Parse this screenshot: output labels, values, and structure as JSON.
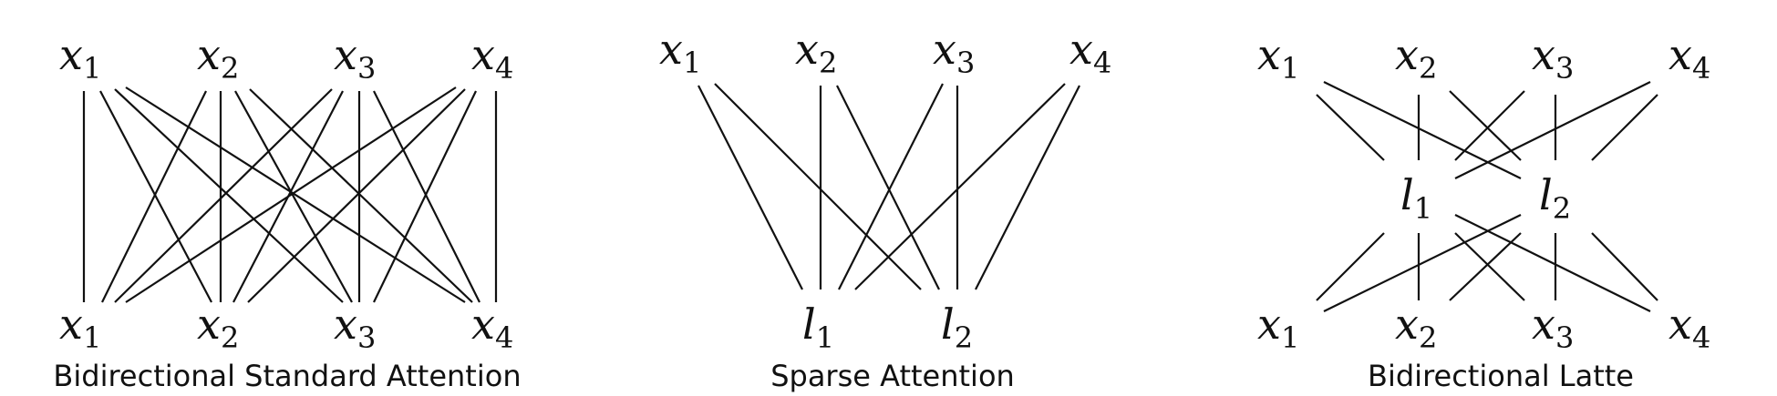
{
  "panels": [
    {
      "caption": "Bidirectional Standard Attention",
      "top": [
        {
          "base": "x",
          "sub": "1"
        },
        {
          "base": "x",
          "sub": "2"
        },
        {
          "base": "x",
          "sub": "3"
        },
        {
          "base": "x",
          "sub": "4"
        }
      ],
      "bottom": [
        {
          "base": "x",
          "sub": "1"
        },
        {
          "base": "x",
          "sub": "2"
        },
        {
          "base": "x",
          "sub": "3"
        },
        {
          "base": "x",
          "sub": "4"
        }
      ]
    },
    {
      "caption": "Sparse Attention",
      "top": [
        {
          "base": "x",
          "sub": "1"
        },
        {
          "base": "x",
          "sub": "2"
        },
        {
          "base": "x",
          "sub": "3"
        },
        {
          "base": "x",
          "sub": "4"
        }
      ],
      "bottom": [
        {
          "base": "l",
          "sub": "1"
        },
        {
          "base": "l",
          "sub": "2"
        }
      ]
    },
    {
      "caption": "Bidirectional Latte",
      "top": [
        {
          "base": "x",
          "sub": "1"
        },
        {
          "base": "x",
          "sub": "2"
        },
        {
          "base": "x",
          "sub": "3"
        },
        {
          "base": "x",
          "sub": "4"
        }
      ],
      "middle": [
        {
          "base": "l",
          "sub": "1"
        },
        {
          "base": "l",
          "sub": "2"
        }
      ],
      "bottom": [
        {
          "base": "x",
          "sub": "1"
        },
        {
          "base": "x",
          "sub": "2"
        },
        {
          "base": "x",
          "sub": "3"
        },
        {
          "base": "x",
          "sub": "4"
        }
      ]
    }
  ]
}
